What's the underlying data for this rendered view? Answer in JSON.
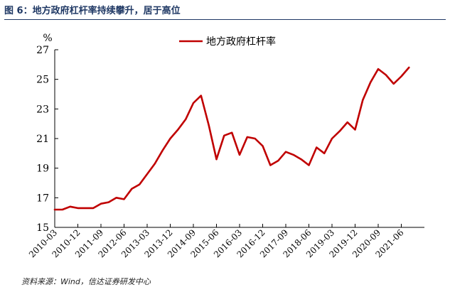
{
  "figure": {
    "title": "图 6：地方政府杠杆率持续攀升，居于高位",
    "source": "资料来源：Wind，信达证券研发中心"
  },
  "chart_data": {
    "type": "line",
    "ylabel": "%",
    "ylim": [
      15,
      27
    ],
    "yticks": [
      15,
      17,
      19,
      21,
      23,
      25,
      27
    ],
    "xlim": [
      "2010-03",
      "2022-03"
    ],
    "xticks": [
      "2010-03",
      "2010-12",
      "2011-09",
      "2012-06",
      "2013-03",
      "2013-12",
      "2014-09",
      "2015-06",
      "2016-03",
      "2016-12",
      "2017-09",
      "2018-06",
      "2019-03",
      "2019-12",
      "2020-09",
      "2021-06"
    ],
    "legend": "top-center",
    "grid": false,
    "series": [
      {
        "name": "地方政府杠杆率",
        "color": "#c00000",
        "x": [
          "2010-03",
          "2010-06",
          "2010-09",
          "2010-12",
          "2011-03",
          "2011-06",
          "2011-09",
          "2011-12",
          "2012-03",
          "2012-06",
          "2012-09",
          "2012-12",
          "2013-03",
          "2013-06",
          "2013-09",
          "2013-12",
          "2014-03",
          "2014-06",
          "2014-09",
          "2014-12",
          "2015-03",
          "2015-06",
          "2015-09",
          "2015-12",
          "2016-03",
          "2016-06",
          "2016-09",
          "2016-12",
          "2017-03",
          "2017-06",
          "2017-09",
          "2017-12",
          "2018-03",
          "2018-06",
          "2018-09",
          "2018-12",
          "2019-03",
          "2019-06",
          "2019-09",
          "2019-12",
          "2020-03",
          "2020-06",
          "2020-09",
          "2020-12",
          "2021-03",
          "2021-06",
          "2021-09"
        ],
        "values": [
          16.2,
          16.2,
          16.4,
          16.3,
          16.3,
          16.3,
          16.6,
          16.7,
          17.0,
          16.9,
          17.6,
          17.9,
          18.6,
          19.3,
          20.2,
          21.0,
          21.6,
          22.3,
          23.4,
          23.9,
          21.9,
          19.6,
          21.2,
          21.4,
          19.9,
          21.1,
          21.0,
          20.5,
          19.2,
          19.5,
          20.1,
          19.9,
          19.6,
          19.2,
          20.4,
          20.0,
          21.0,
          21.5,
          22.1,
          21.6,
          23.6,
          24.8,
          25.7,
          25.3,
          24.7,
          25.2,
          25.8
        ]
      }
    ]
  }
}
